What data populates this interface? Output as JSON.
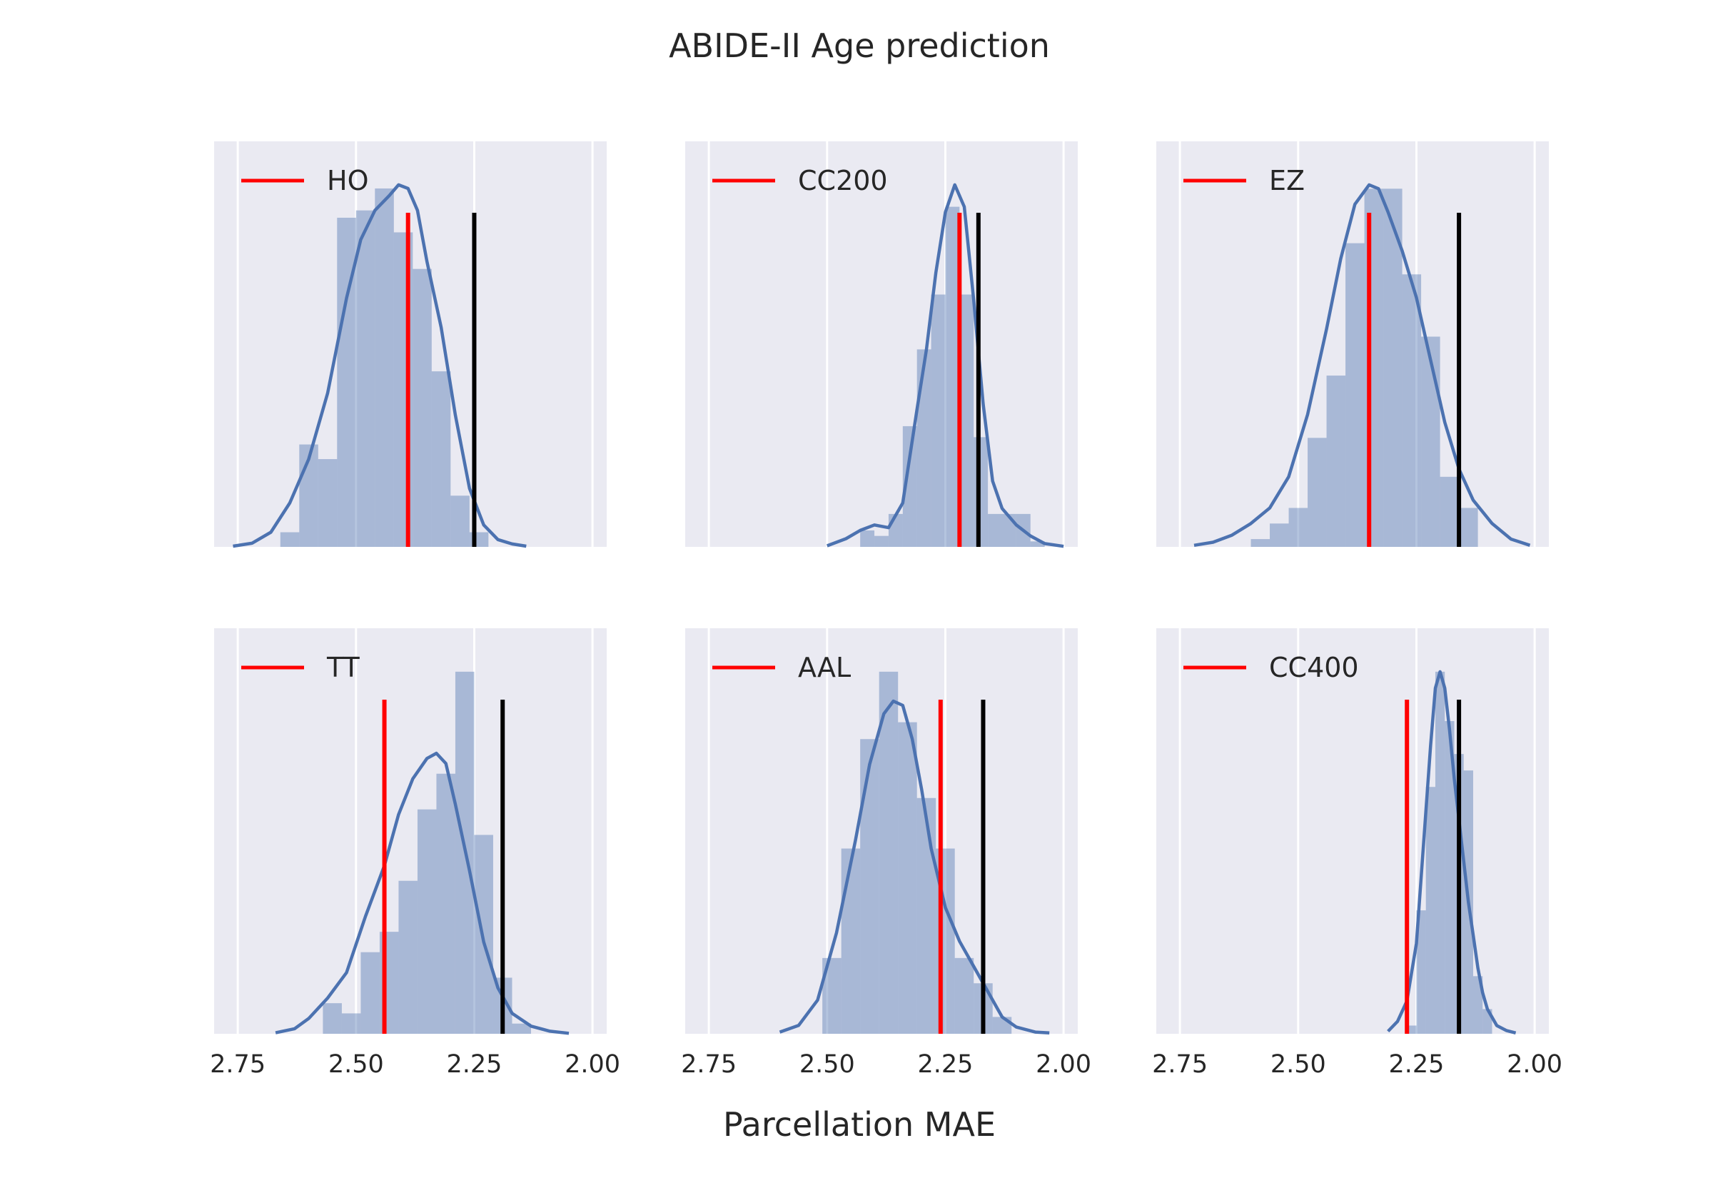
{
  "chart_data": {
    "type": "histogram",
    "title": "ABIDE-II Age prediction",
    "xlabel": "Parcellation MAE",
    "x_inverted": true,
    "xlim": [
      2.8,
      1.97
    ],
    "xticks": [
      2.75,
      2.5,
      2.25,
      2.0
    ],
    "xtick_labels": [
      "2.75",
      "2.50",
      "2.25",
      "2.00"
    ],
    "grid": "vertical",
    "legend_position": "upper-left",
    "colors": {
      "background": "#eaeaf2",
      "hist": "#4c72b0",
      "kde": "#4c72b0",
      "reference": "#ff0000",
      "baseline": "#000000",
      "grid": "#ffffff"
    },
    "panels": [
      {
        "legend": "HO",
        "reference_line": 2.39,
        "baseline_line": 2.25,
        "hist_edges": [
          2.66,
          2.62,
          2.58,
          2.54,
          2.5,
          2.46,
          2.42,
          2.38,
          2.34,
          2.3,
          2.26,
          2.22
        ],
        "hist_counts": [
          2,
          14,
          12,
          45,
          46,
          49,
          43,
          38,
          24,
          7,
          2
        ],
        "kde_x": [
          2.76,
          2.72,
          2.68,
          2.64,
          2.6,
          2.56,
          2.52,
          2.49,
          2.46,
          2.43,
          2.41,
          2.39,
          2.37,
          2.35,
          2.32,
          2.29,
          2.26,
          2.23,
          2.2,
          2.17,
          2.14
        ],
        "kde_y": [
          0.1,
          0.5,
          2,
          6,
          12,
          21,
          34,
          42,
          46,
          48,
          49.5,
          49,
          46,
          39,
          30,
          18,
          8,
          3,
          1,
          0.4,
          0.1
        ]
      },
      {
        "legend": "CC200",
        "reference_line": 2.22,
        "baseline_line": 2.18,
        "hist_edges": [
          2.43,
          2.4,
          2.37,
          2.34,
          2.31,
          2.28,
          2.25,
          2.22,
          2.19,
          2.16,
          2.13,
          2.1,
          2.07,
          2.04
        ],
        "hist_counts": [
          3,
          2,
          6,
          22,
          36,
          46,
          62,
          46,
          20,
          6,
          6,
          6,
          1
        ],
        "kde_x": [
          2.5,
          2.46,
          2.43,
          2.4,
          2.37,
          2.34,
          2.31,
          2.29,
          2.27,
          2.25,
          2.23,
          2.21,
          2.19,
          2.17,
          2.15,
          2.13,
          2.1,
          2.07,
          2.04,
          2.0
        ],
        "kde_y": [
          0.2,
          1.5,
          3,
          4,
          3.5,
          8,
          25,
          36,
          50,
          61,
          66,
          62,
          45,
          26,
          12,
          7,
          4,
          2,
          0.6,
          0.1
        ]
      },
      {
        "legend": "EZ",
        "reference_line": 2.35,
        "baseline_line": 2.16,
        "hist_edges": [
          2.6,
          2.56,
          2.52,
          2.48,
          2.44,
          2.4,
          2.36,
          2.32,
          2.28,
          2.24,
          2.2,
          2.16,
          2.12
        ],
        "hist_counts": [
          1,
          3,
          5,
          14,
          22,
          39,
          46,
          46,
          35,
          27,
          9,
          5
        ],
        "kde_x": [
          2.72,
          2.68,
          2.64,
          2.6,
          2.56,
          2.52,
          2.48,
          2.44,
          2.41,
          2.38,
          2.35,
          2.33,
          2.31,
          2.28,
          2.25,
          2.22,
          2.19,
          2.16,
          2.13,
          2.09,
          2.05,
          2.01
        ],
        "kde_y": [
          0.2,
          0.6,
          1.5,
          3,
          5,
          9,
          17,
          28,
          37,
          44,
          46.5,
          46,
          43,
          38,
          32,
          24,
          16,
          10,
          6,
          3,
          1,
          0.2
        ]
      },
      {
        "legend": "TT",
        "reference_line": 2.44,
        "baseline_line": 2.19,
        "hist_edges": [
          2.57,
          2.53,
          2.49,
          2.45,
          2.41,
          2.37,
          2.33,
          2.29,
          2.25,
          2.21,
          2.17,
          2.13
        ],
        "hist_counts": [
          6,
          4,
          16,
          20,
          30,
          44,
          51,
          71,
          39,
          11,
          2
        ],
        "kde_x": [
          2.67,
          2.63,
          2.6,
          2.56,
          2.52,
          2.48,
          2.44,
          2.41,
          2.38,
          2.35,
          2.33,
          2.31,
          2.29,
          2.26,
          2.23,
          2.2,
          2.17,
          2.13,
          2.09,
          2.05
        ],
        "kde_y": [
          0.2,
          1,
          3,
          7,
          12,
          23,
          33,
          43,
          50,
          54,
          55,
          53,
          45,
          32,
          18,
          9,
          4,
          1.5,
          0.5,
          0.1
        ]
      },
      {
        "legend": "AAL",
        "reference_line": 2.26,
        "baseline_line": 2.17,
        "hist_edges": [
          2.51,
          2.47,
          2.43,
          2.39,
          2.35,
          2.31,
          2.27,
          2.23,
          2.19,
          2.15,
          2.11
        ],
        "hist_counts": [
          9,
          22,
          35,
          43,
          37,
          28,
          22,
          9,
          6,
          2
        ],
        "kde_x": [
          2.6,
          2.56,
          2.52,
          2.48,
          2.44,
          2.41,
          2.38,
          2.36,
          2.34,
          2.32,
          2.3,
          2.28,
          2.25,
          2.22,
          2.19,
          2.16,
          2.13,
          2.1,
          2.06,
          2.03
        ],
        "kde_y": [
          0.2,
          1,
          4,
          12,
          23,
          32,
          38,
          39.5,
          39,
          35,
          29,
          22,
          15,
          11,
          8,
          5,
          2,
          0.8,
          0.2,
          0.1
        ]
      },
      {
        "legend": "CC400",
        "reference_line": 2.27,
        "baseline_line": 2.16,
        "hist_edges": [
          2.27,
          2.25,
          2.23,
          2.21,
          2.19,
          2.17,
          2.15,
          2.13,
          2.11,
          2.09
        ],
        "hist_counts": [
          1,
          15,
          30,
          44,
          38,
          34,
          32,
          7,
          3
        ],
        "kde_x": [
          2.31,
          2.29,
          2.27,
          2.25,
          2.24,
          2.23,
          2.22,
          2.21,
          2.2,
          2.19,
          2.18,
          2.17,
          2.16,
          2.15,
          2.14,
          2.13,
          2.12,
          2.11,
          2.1,
          2.08,
          2.06,
          2.04
        ],
        "kde_y": [
          0.3,
          1.5,
          4,
          11,
          19,
          27,
          35,
          42,
          44,
          42,
          37,
          31,
          26,
          21,
          16,
          12,
          8,
          5,
          3,
          1,
          0.4,
          0.1
        ]
      }
    ]
  }
}
